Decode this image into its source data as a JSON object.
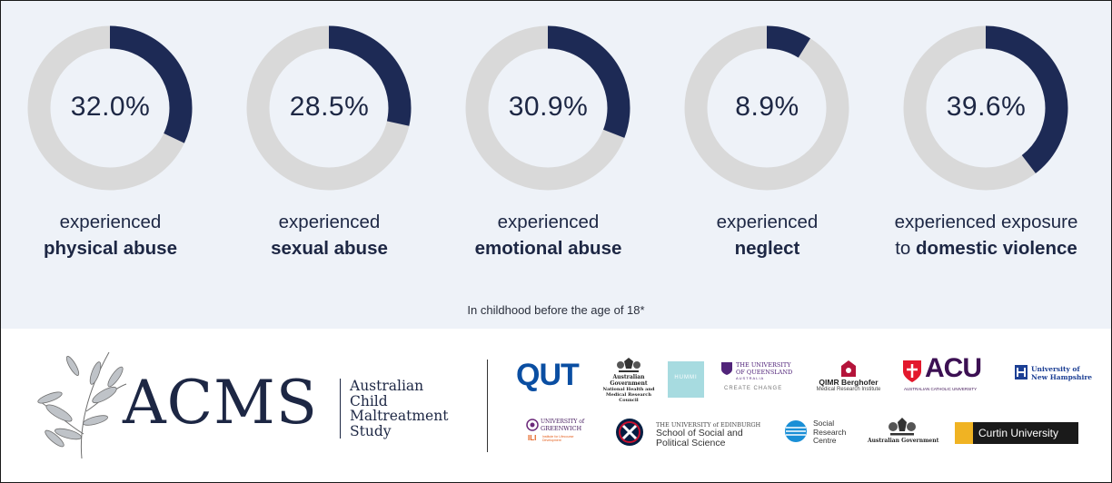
{
  "chart_data": {
    "type": "pie",
    "subtype": "donut",
    "colors": {
      "filled": "#1d2a55",
      "track": "#d9d9d9",
      "text": "#1d2744"
    },
    "items": [
      {
        "value": 32.0,
        "label": "32.0%",
        "caption_line1": "experienced",
        "caption_pre": "",
        "caption_bold": "physical abuse"
      },
      {
        "value": 28.5,
        "label": "28.5%",
        "caption_line1": "experienced",
        "caption_pre": "",
        "caption_bold": "sexual abuse"
      },
      {
        "value": 30.9,
        "label": "30.9%",
        "caption_line1": "experienced",
        "caption_pre": "",
        "caption_bold": "emotional abuse"
      },
      {
        "value": 8.9,
        "label": "8.9%",
        "caption_line1": "experienced",
        "caption_pre": "",
        "caption_bold": "neglect"
      },
      {
        "value": 39.6,
        "label": "39.6%",
        "caption_line1": "experienced exposure",
        "caption_pre": "to ",
        "caption_bold": "domestic violence"
      }
    ],
    "footnote": "In childhood before the age of 18*"
  },
  "brand": {
    "acronym": "ACMS",
    "name_lines": [
      "Australian",
      "Child",
      "Maltreatment",
      "Study"
    ]
  },
  "partners": {
    "qut": "QUT",
    "aus_gov_nhmrc": [
      "Australian Government",
      "National Health and",
      "Medical Research Council"
    ],
    "hummi": "HUMMI",
    "uq": [
      "THE UNIVERSITY",
      "OF QUEENSLAND",
      "AUSTRALIA",
      "CREATE CHANGE"
    ],
    "qimr": [
      "QIMR Berghofer",
      "Medical Research Institute"
    ],
    "acu": [
      "ACU",
      "AUSTRALIAN CATHOLIC UNIVERSITY"
    ],
    "unh": [
      "University of",
      "New Hampshire"
    ],
    "greenwich": [
      "UNIVERSITY of",
      "GREENWICH",
      "ILI",
      "Institute for Lifecourse Development"
    ],
    "edinburgh": [
      "THE UNIVERSITY of EDINBURGH",
      "School of Social and",
      "Political Science"
    ],
    "src": [
      "Social",
      "Research",
      "Centre"
    ],
    "aus_gov": "Australian Government",
    "curtin": "Curtin University"
  }
}
